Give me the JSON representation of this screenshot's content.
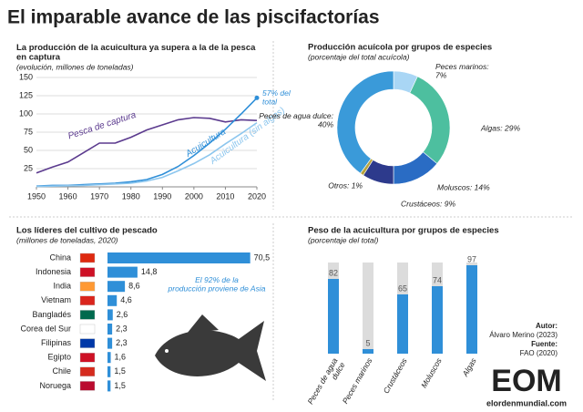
{
  "title": "El imparable avance de las piscifactorías",
  "chart_data": [
    {
      "type": "line",
      "title": "La producción de la acuicultura ya supera a la de la pesca en captura",
      "subtitle": "(evolución, millones de toneladas)",
      "x": [
        1950,
        1955,
        1960,
        1965,
        1970,
        1975,
        1980,
        1985,
        1990,
        1995,
        2000,
        2005,
        2010,
        2015,
        2020
      ],
      "xlim": [
        1950,
        2020
      ],
      "xticks": [
        1950,
        1960,
        1970,
        1980,
        1990,
        2000,
        2010,
        2020
      ],
      "ylim": [
        0,
        150
      ],
      "yticks": [
        25,
        50,
        75,
        100,
        125,
        150
      ],
      "grid": true,
      "series": [
        {
          "name": "Pesca de captura",
          "color": "#5b3a8e",
          "values": [
            19,
            27,
            34,
            47,
            60,
            60,
            68,
            78,
            85,
            92,
            95,
            94,
            89,
            92,
            91
          ]
        },
        {
          "name": "Acuicultura",
          "color": "#2f8fd8",
          "values": [
            1,
            2,
            2,
            3,
            4,
            5,
            7,
            10,
            17,
            28,
            43,
            60,
            79,
            100,
            122
          ]
        },
        {
          "name": "Acuicultura (sin algas)",
          "color": "#8cc6ee",
          "values": [
            0.5,
            1,
            1.5,
            2,
            3,
            4,
            5,
            8,
            13,
            22,
            32,
            44,
            59,
            73,
            88
          ]
        }
      ],
      "annotation": "57% del total"
    },
    {
      "type": "donut",
      "title": "Producción acuícola por grupos de especies",
      "subtitle": "(porcentaje del total acuícola)",
      "categories": [
        "Peces marinos",
        "Algas",
        "Moluscos",
        "Crustáceos",
        "Otros",
        "Peces de agua dulce"
      ],
      "values": [
        7,
        29,
        14,
        9,
        1,
        40
      ],
      "value_labels": [
        "Peces marinos: 7%",
        "Algas: 29%",
        "Moluscos: 14%",
        "Crustáceos: 9%",
        "Otros: 1%",
        "Peces de agua dulce: 40%"
      ],
      "colors": [
        "#a9d6f5",
        "#4dbf9f",
        "#2a6cc4",
        "#2d3a8c",
        "#b8a43c",
        "#3a9ad9"
      ]
    },
    {
      "type": "hbar",
      "title": "Los líderes del cultivo de pescado",
      "subtitle": "(millones de toneladas, 2020)",
      "categories": [
        "China",
        "Indonesia",
        "India",
        "Vietnam",
        "Bangladés",
        "Corea del Sur",
        "Filipinas",
        "Egipto",
        "Chile",
        "Noruega"
      ],
      "values": [
        70.5,
        14.8,
        8.6,
        4.6,
        2.6,
        2.3,
        2.3,
        1.6,
        1.5,
        1.5
      ],
      "value_labels": [
        "70,5",
        "14,8",
        "8,6",
        "4,6",
        "2,6",
        "2,3",
        "2,3",
        "1,6",
        "1,5",
        "1,5"
      ],
      "xlim": [
        0,
        72
      ],
      "color": "#2f8fd8",
      "annotation": "El 92% de la producción proviene de Asia"
    },
    {
      "type": "bar",
      "title": "Peso de la acuicultura por grupos de especies",
      "subtitle": "(porcentaje del total)",
      "categories": [
        "Peces de agua dulce",
        "Peces marinos",
        "Crustáceos",
        "Moluscos",
        "Algas"
      ],
      "values": [
        82,
        5,
        65,
        74,
        97
      ],
      "ylim": [
        0,
        100
      ],
      "color": "#2f8fd8",
      "background": "#dcdcdc"
    }
  ],
  "credits": {
    "author_label": "Autor:",
    "author": "Álvaro Merino (2023)",
    "source_label": "Fuente:",
    "source": "FAO (2020)",
    "logo": "EOM",
    "site": "elordenmundial.com"
  }
}
